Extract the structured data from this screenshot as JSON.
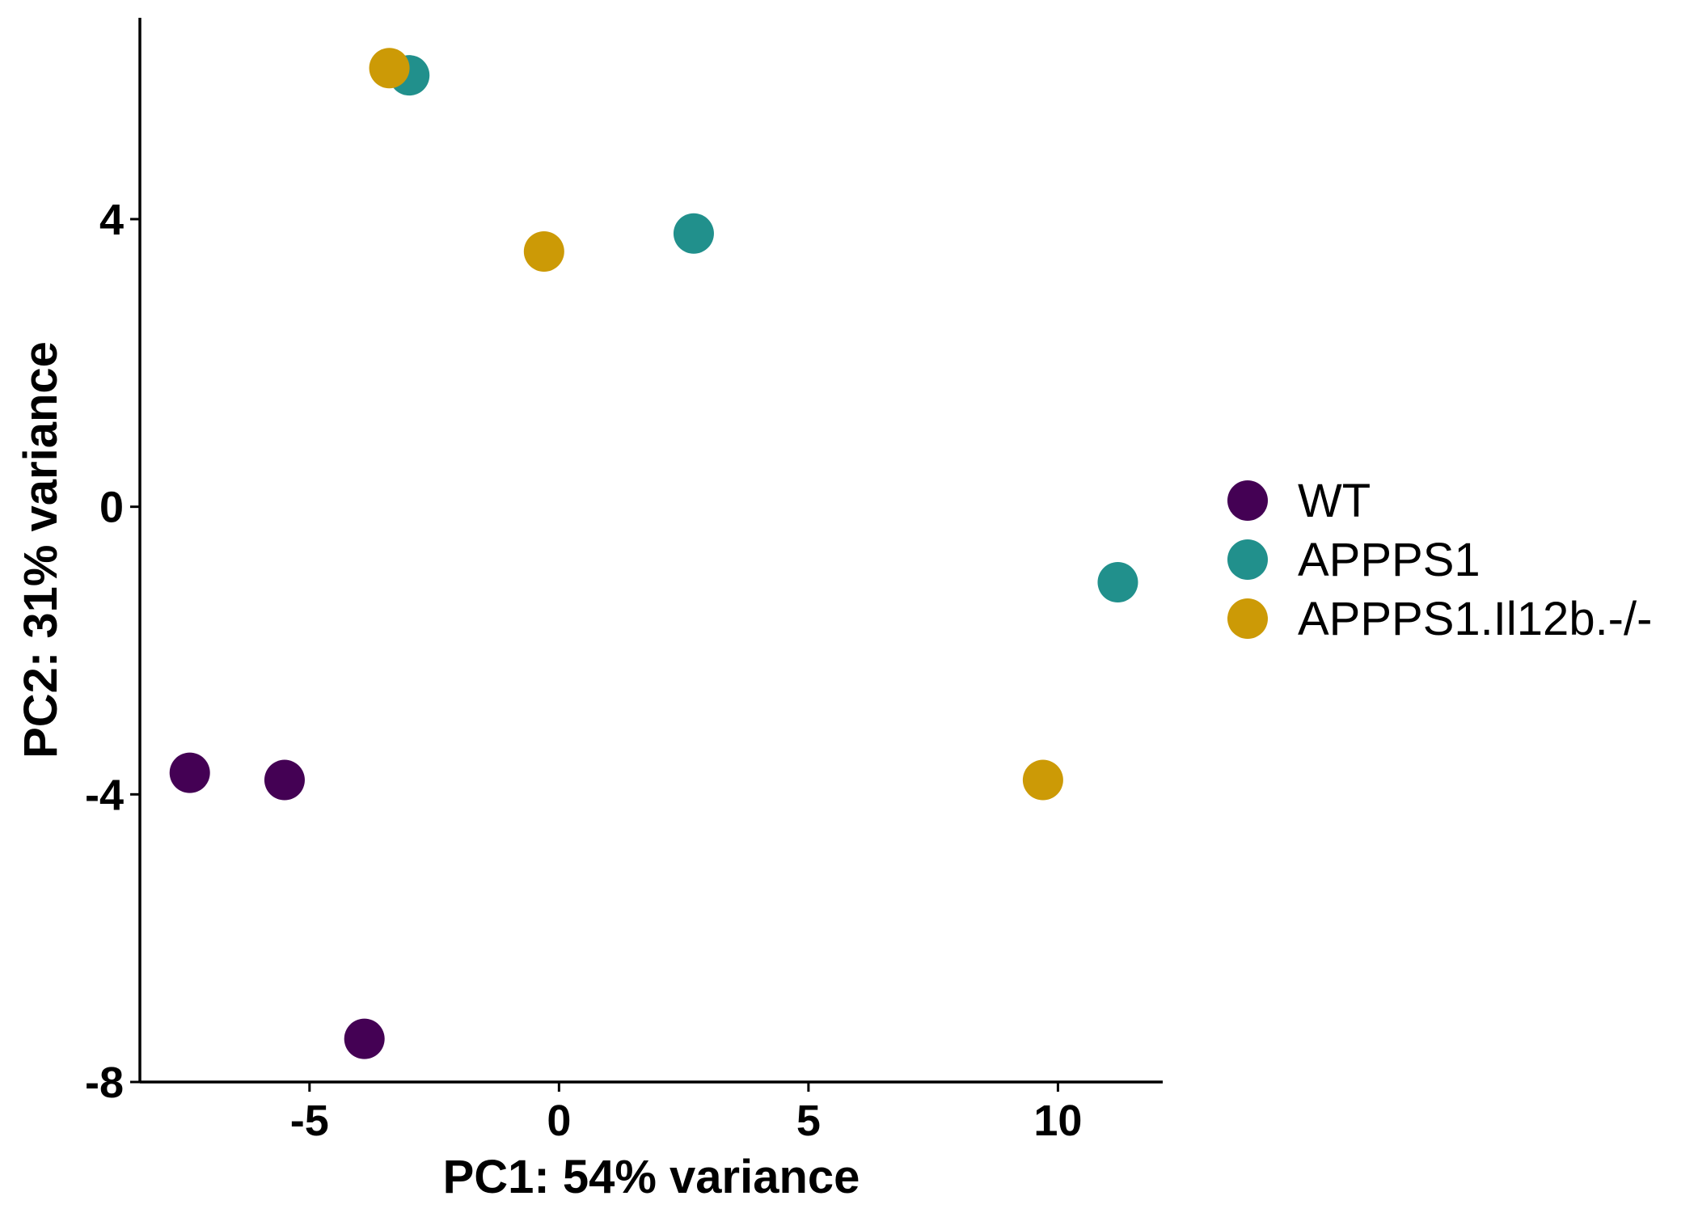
{
  "chart_data": {
    "type": "scatter",
    "title": "",
    "xlabel": "PC1: 54% variance",
    "ylabel": "PC2: 31% variance",
    "xlim": [
      -8.4,
      12.1
    ],
    "ylim": [
      -8.0,
      6.8
    ],
    "xticks": [
      -5,
      0,
      5,
      10
    ],
    "xtick_labels": [
      "-5",
      "0",
      "5",
      "10"
    ],
    "yticks": [
      -8,
      -4,
      0,
      4
    ],
    "ytick_labels": [
      "-8",
      "-4",
      "0",
      "4"
    ],
    "grid": false,
    "legend_position": "right",
    "series": [
      {
        "name": "WT",
        "color": "#440154",
        "points": [
          {
            "x": -7.4,
            "y": -3.7
          },
          {
            "x": -5.5,
            "y": -3.8
          },
          {
            "x": -3.9,
            "y": -7.4
          }
        ]
      },
      {
        "name": "APPPS1",
        "color": "#21908C",
        "points": [
          {
            "x": -3.0,
            "y": 6.0
          },
          {
            "x": 2.7,
            "y": 3.8
          },
          {
            "x": 11.2,
            "y": -1.05
          }
        ]
      },
      {
        "name": "APPPS1.Il12b.-/-",
        "color": "#CC9A06",
        "points": [
          {
            "x": -3.4,
            "y": 6.1
          },
          {
            "x": -0.3,
            "y": 3.55
          },
          {
            "x": 9.7,
            "y": -3.8
          }
        ]
      }
    ]
  }
}
